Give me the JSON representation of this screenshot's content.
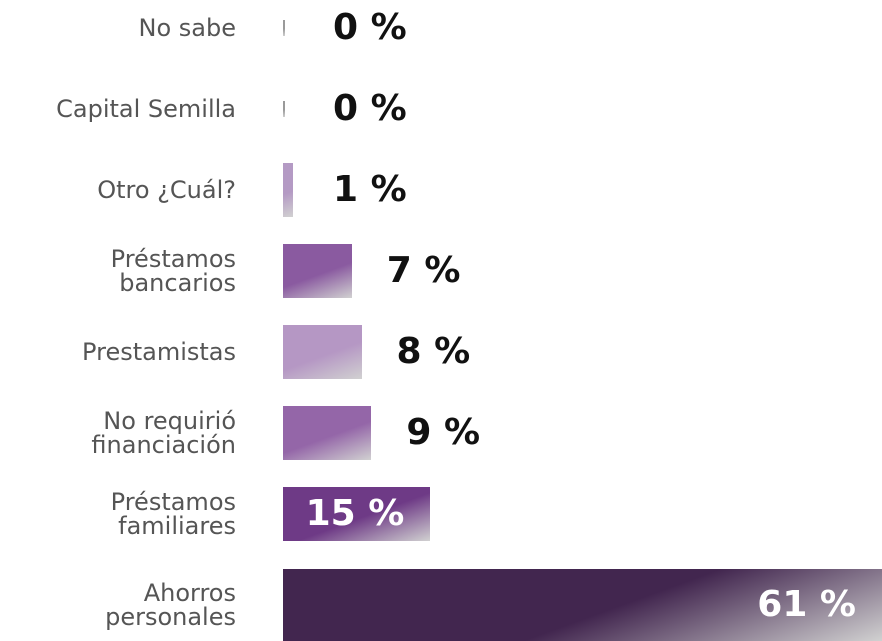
{
  "chart_data": {
    "type": "bar",
    "orientation": "horizontal",
    "categories": [
      "No sabe",
      "Capital Semilla",
      "Otro ¿Cuál?",
      "Préstamos bancarios",
      "Prestamistas",
      "No requirió financiación",
      "Préstamos familiares",
      "Ahorros personales"
    ],
    "values": [
      0,
      0,
      1,
      7,
      8,
      9,
      15,
      61
    ],
    "value_labels": [
      "0 %",
      "0 %",
      "1 %",
      "7 %",
      "8 %",
      "9 %",
      "15 %",
      "61 %"
    ],
    "colors": [
      "#9a9a9a",
      "#9a9a9a",
      "#b49ac4",
      "#8a5aa0",
      "#b597c4",
      "#9466a8",
      "#6e3a86",
      "#42264f"
    ]
  }
}
